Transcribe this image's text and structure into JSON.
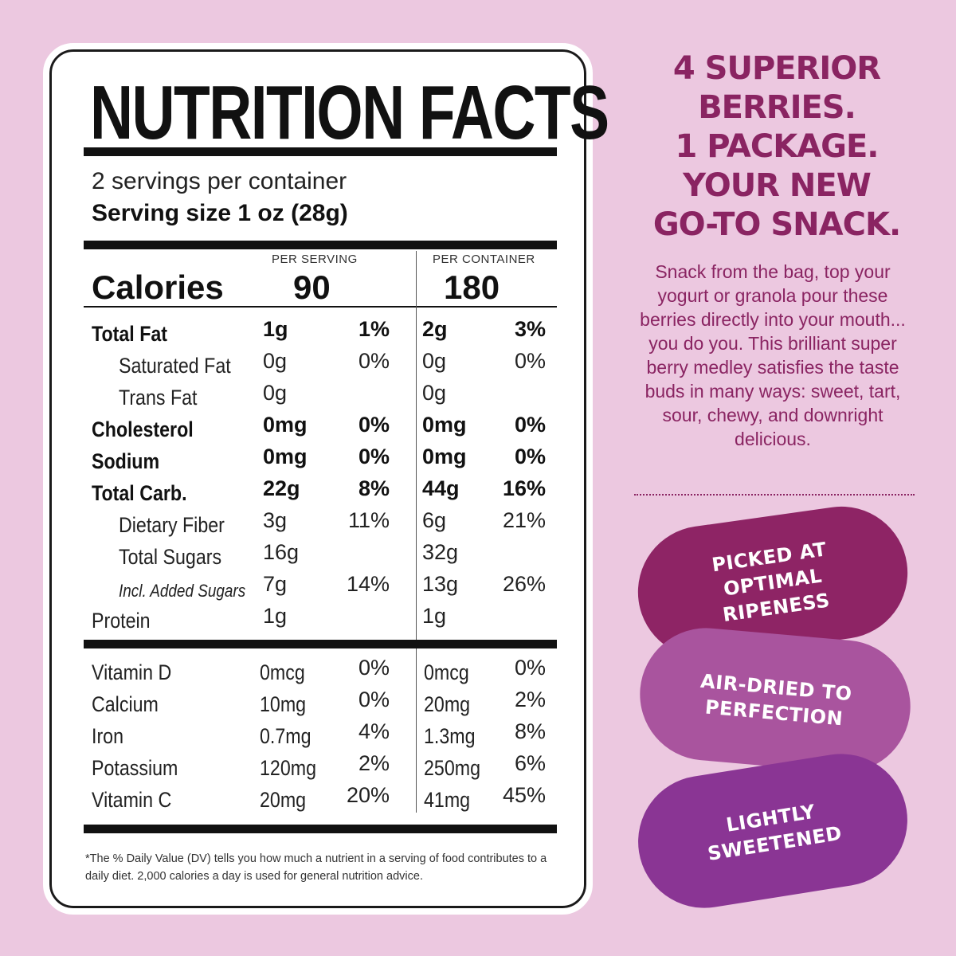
{
  "label": {
    "title": "NUTRITION FACTS",
    "servings_per_container": "2 servings per container",
    "serving_size": "Serving size 1 oz (28g)",
    "col_per_serving": "PER SERVING",
    "col_per_container": "PER CONTAINER",
    "calories_label": "Calories",
    "calories_serving": "90",
    "calories_container": "180",
    "nutrients": [
      {
        "name": "Total Fat",
        "s_amt": "1g",
        "s_dv": "1%",
        "c_amt": "2g",
        "c_dv": "3%"
      },
      {
        "name": "Saturated Fat",
        "s_amt": "0g",
        "s_dv": "0%",
        "c_amt": "0g",
        "c_dv": "0%"
      },
      {
        "name": "Trans Fat",
        "s_amt": "0g",
        "s_dv": "",
        "c_amt": "0g",
        "c_dv": ""
      },
      {
        "name": "Cholesterol",
        "s_amt": "0mg",
        "s_dv": "0%",
        "c_amt": "0mg",
        "c_dv": "0%"
      },
      {
        "name": "Sodium",
        "s_amt": "0mg",
        "s_dv": "0%",
        "c_amt": "0mg",
        "c_dv": "0%"
      },
      {
        "name": "Total Carb.",
        "s_amt": "22g",
        "s_dv": "8%",
        "c_amt": "44g",
        "c_dv": "16%"
      },
      {
        "name": "Dietary Fiber",
        "s_amt": "3g",
        "s_dv": "11%",
        "c_amt": "6g",
        "c_dv": "21%"
      },
      {
        "name": "Total Sugars",
        "s_amt": "16g",
        "s_dv": "",
        "c_amt": "32g",
        "c_dv": ""
      },
      {
        "name": "Incl. Added Sugars",
        "s_amt": "7g",
        "s_dv": "14%",
        "c_amt": "13g",
        "c_dv": "26%"
      },
      {
        "name": "Protein",
        "s_amt": "1g",
        "s_dv": "",
        "c_amt": "1g",
        "c_dv": ""
      }
    ],
    "vitamins": [
      {
        "name": "Vitamin D",
        "s_amt": "0mcg",
        "s_dv": "0%",
        "c_amt": "0mcg",
        "c_dv": "0%"
      },
      {
        "name": "Calcium",
        "s_amt": "10mg",
        "s_dv": "0%",
        "c_amt": "20mg",
        "c_dv": "2%"
      },
      {
        "name": "Iron",
        "s_amt": "0.7mg",
        "s_dv": "4%",
        "c_amt": "1.3mg",
        "c_dv": "8%"
      },
      {
        "name": "Potassium",
        "s_amt": "120mg",
        "s_dv": "2%",
        "c_amt": "250mg",
        "c_dv": "6%"
      },
      {
        "name": "Vitamin C",
        "s_amt": "20mg",
        "s_dv": "20%",
        "c_amt": "41mg",
        "c_dv": "45%"
      }
    ],
    "footnote": "*The % Daily Value (DV) tells you how much a nutrient in a serving of food contributes to a daily diet. 2,000 calories a day is used for general nutrition advice."
  },
  "promo": {
    "headline": [
      "4 SUPERIOR",
      "BERRIES.",
      "1 PACKAGE.",
      "YOUR NEW",
      "GO-TO SNACK."
    ],
    "description": "Snack from the bag, top your yogurt or granola pour these berries directly into your mouth... you do you. This brilliant super berry medley satisfies the taste buds in many ways: sweet, tart, sour, chewy, and downright delicious.",
    "badges": [
      "PICKED AT\nOPTIMAL\nRIPENESS",
      "AIR-DRIED TO\nPERFECTION",
      "LIGHTLY\nSWEETENED"
    ],
    "colors": {
      "background": "#ecc8e0",
      "accent": "#8a2462",
      "badge1": "#8e2465",
      "badge2": "#a9549e",
      "badge3": "#8a3594"
    }
  }
}
